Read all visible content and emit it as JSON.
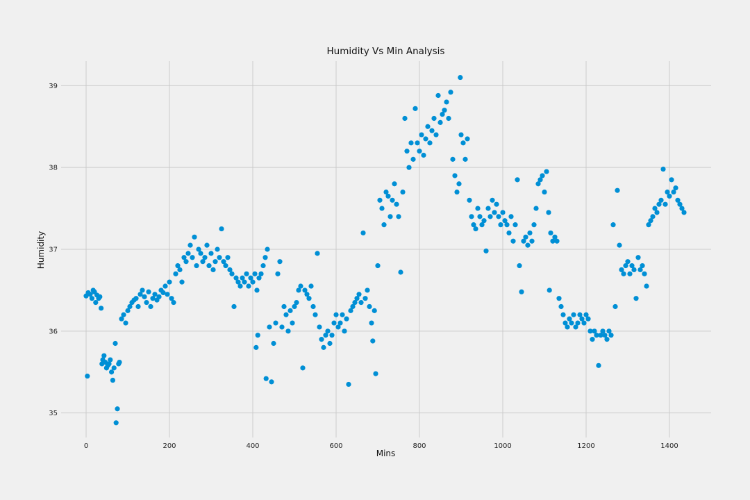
{
  "chart_data": {
    "type": "scatter",
    "title": "Humidity Vs Min Analysis",
    "xlabel": "Mins",
    "ylabel": "Humidity",
    "xlim": [
      -60,
      1500
    ],
    "ylim": [
      34.7,
      39.3
    ],
    "xticks": [
      0,
      200,
      400,
      600,
      800,
      1000,
      1200,
      1400
    ],
    "yticks": [
      35,
      36,
      37,
      38,
      39
    ],
    "grid": true,
    "marker_color": "#008fd5",
    "background_color": "#f0f0f0",
    "grid_color": "#cbcbcb",
    "series": [
      {
        "values": [
          [
            0,
            36.43
          ],
          [
            3,
            35.45
          ],
          [
            5,
            36.47
          ],
          [
            10,
            36.45
          ],
          [
            14,
            36.4
          ],
          [
            17,
            36.5
          ],
          [
            20,
            36.48
          ],
          [
            23,
            36.35
          ],
          [
            26,
            36.44
          ],
          [
            30,
            36.4
          ],
          [
            33,
            36.42
          ],
          [
            36,
            36.28
          ],
          [
            38,
            35.6
          ],
          [
            40,
            35.65
          ],
          [
            43,
            35.7
          ],
          [
            46,
            35.62
          ],
          [
            49,
            35.55
          ],
          [
            52,
            35.58
          ],
          [
            55,
            35.6
          ],
          [
            58,
            35.65
          ],
          [
            61,
            35.5
          ],
          [
            64,
            35.4
          ],
          [
            67,
            35.55
          ],
          [
            70,
            35.85
          ],
          [
            72,
            34.88
          ],
          [
            75,
            35.05
          ],
          [
            78,
            35.6
          ],
          [
            80,
            35.62
          ],
          [
            85,
            36.15
          ],
          [
            90,
            36.2
          ],
          [
            95,
            36.1
          ],
          [
            100,
            36.25
          ],
          [
            105,
            36.3
          ],
          [
            110,
            36.35
          ],
          [
            115,
            36.38
          ],
          [
            120,
            36.4
          ],
          [
            125,
            36.3
          ],
          [
            130,
            36.45
          ],
          [
            135,
            36.5
          ],
          [
            140,
            36.42
          ],
          [
            145,
            36.35
          ],
          [
            150,
            36.48
          ],
          [
            155,
            36.3
          ],
          [
            160,
            36.4
          ],
          [
            165,
            36.45
          ],
          [
            170,
            36.38
          ],
          [
            175,
            36.42
          ],
          [
            180,
            36.5
          ],
          [
            185,
            36.47
          ],
          [
            190,
            36.55
          ],
          [
            195,
            36.45
          ],
          [
            200,
            36.6
          ],
          [
            205,
            36.4
          ],
          [
            210,
            36.35
          ],
          [
            215,
            36.7
          ],
          [
            220,
            36.8
          ],
          [
            225,
            36.75
          ],
          [
            230,
            36.6
          ],
          [
            235,
            36.9
          ],
          [
            240,
            36.85
          ],
          [
            245,
            36.95
          ],
          [
            250,
            37.05
          ],
          [
            255,
            36.9
          ],
          [
            260,
            37.15
          ],
          [
            265,
            36.8
          ],
          [
            270,
            37.0
          ],
          [
            275,
            36.95
          ],
          [
            280,
            36.85
          ],
          [
            285,
            36.9
          ],
          [
            290,
            37.05
          ],
          [
            295,
            36.8
          ],
          [
            300,
            36.95
          ],
          [
            305,
            36.75
          ],
          [
            310,
            36.85
          ],
          [
            315,
            37.0
          ],
          [
            320,
            36.9
          ],
          [
            325,
            37.25
          ],
          [
            330,
            36.85
          ],
          [
            335,
            36.8
          ],
          [
            340,
            36.9
          ],
          [
            345,
            36.75
          ],
          [
            350,
            36.7
          ],
          [
            355,
            36.3
          ],
          [
            360,
            36.65
          ],
          [
            365,
            36.6
          ],
          [
            370,
            36.55
          ],
          [
            375,
            36.65
          ],
          [
            380,
            36.6
          ],
          [
            385,
            36.7
          ],
          [
            390,
            36.55
          ],
          [
            395,
            36.65
          ],
          [
            400,
            36.6
          ],
          [
            405,
            36.7
          ],
          [
            410,
            36.5
          ],
          [
            415,
            36.65
          ],
          [
            420,
            36.7
          ],
          [
            425,
            36.8
          ],
          [
            430,
            36.9
          ],
          [
            435,
            37.0
          ],
          [
            408,
            35.8
          ],
          [
            412,
            35.95
          ],
          [
            432,
            35.42
          ],
          [
            440,
            36.05
          ],
          [
            445,
            35.38
          ],
          [
            450,
            35.85
          ],
          [
            455,
            36.1
          ],
          [
            460,
            36.7
          ],
          [
            465,
            36.85
          ],
          [
            470,
            36.05
          ],
          [
            475,
            36.3
          ],
          [
            480,
            36.2
          ],
          [
            485,
            36.0
          ],
          [
            490,
            36.25
          ],
          [
            495,
            36.1
          ],
          [
            500,
            36.3
          ],
          [
            505,
            36.35
          ],
          [
            510,
            36.5
          ],
          [
            515,
            36.55
          ],
          [
            520,
            35.55
          ],
          [
            525,
            36.5
          ],
          [
            530,
            36.45
          ],
          [
            535,
            36.4
          ],
          [
            540,
            36.55
          ],
          [
            545,
            36.3
          ],
          [
            550,
            36.2
          ],
          [
            555,
            36.95
          ],
          [
            560,
            36.05
          ],
          [
            565,
            35.9
          ],
          [
            570,
            35.8
          ],
          [
            575,
            35.95
          ],
          [
            580,
            36.0
          ],
          [
            585,
            35.85
          ],
          [
            590,
            35.95
          ],
          [
            595,
            36.1
          ],
          [
            600,
            36.2
          ],
          [
            605,
            36.05
          ],
          [
            610,
            36.1
          ],
          [
            615,
            36.2
          ],
          [
            620,
            36.0
          ],
          [
            625,
            36.15
          ],
          [
            630,
            35.35
          ],
          [
            635,
            36.25
          ],
          [
            640,
            36.3
          ],
          [
            645,
            36.35
          ],
          [
            650,
            36.4
          ],
          [
            655,
            36.45
          ],
          [
            660,
            36.35
          ],
          [
            665,
            37.2
          ],
          [
            670,
            36.4
          ],
          [
            675,
            36.5
          ],
          [
            680,
            36.3
          ],
          [
            685,
            36.1
          ],
          [
            688,
            35.88
          ],
          [
            692,
            36.25
          ],
          [
            695,
            35.48
          ],
          [
            700,
            36.8
          ],
          [
            705,
            37.6
          ],
          [
            710,
            37.5
          ],
          [
            715,
            37.3
          ],
          [
            720,
            37.7
          ],
          [
            725,
            37.65
          ],
          [
            730,
            37.4
          ],
          [
            735,
            37.6
          ],
          [
            740,
            37.8
          ],
          [
            745,
            37.55
          ],
          [
            750,
            37.4
          ],
          [
            755,
            36.72
          ],
          [
            760,
            37.7
          ],
          [
            765,
            38.6
          ],
          [
            770,
            38.2
          ],
          [
            775,
            38.0
          ],
          [
            780,
            38.3
          ],
          [
            785,
            38.1
          ],
          [
            790,
            38.72
          ],
          [
            795,
            38.3
          ],
          [
            800,
            38.2
          ],
          [
            805,
            38.4
          ],
          [
            810,
            38.15
          ],
          [
            815,
            38.35
          ],
          [
            820,
            38.5
          ],
          [
            825,
            38.3
          ],
          [
            830,
            38.45
          ],
          [
            835,
            38.6
          ],
          [
            840,
            38.4
          ],
          [
            845,
            38.88
          ],
          [
            850,
            38.55
          ],
          [
            855,
            38.65
          ],
          [
            860,
            38.7
          ],
          [
            865,
            38.8
          ],
          [
            870,
            38.6
          ],
          [
            875,
            38.92
          ],
          [
            880,
            38.1
          ],
          [
            885,
            37.9
          ],
          [
            890,
            37.7
          ],
          [
            895,
            37.8
          ],
          [
            898,
            39.1
          ],
          [
            900,
            38.4
          ],
          [
            905,
            38.3
          ],
          [
            910,
            38.1
          ],
          [
            915,
            38.35
          ],
          [
            920,
            37.6
          ],
          [
            925,
            37.4
          ],
          [
            930,
            37.3
          ],
          [
            935,
            37.25
          ],
          [
            940,
            37.5
          ],
          [
            945,
            37.4
          ],
          [
            950,
            37.3
          ],
          [
            955,
            37.35
          ],
          [
            960,
            36.98
          ],
          [
            965,
            37.5
          ],
          [
            970,
            37.4
          ],
          [
            975,
            37.6
          ],
          [
            980,
            37.45
          ],
          [
            985,
            37.55
          ],
          [
            990,
            37.4
          ],
          [
            995,
            37.3
          ],
          [
            1000,
            37.45
          ],
          [
            1005,
            37.35
          ],
          [
            1010,
            37.3
          ],
          [
            1015,
            37.2
          ],
          [
            1020,
            37.4
          ],
          [
            1025,
            37.1
          ],
          [
            1030,
            37.3
          ],
          [
            1035,
            37.85
          ],
          [
            1040,
            36.8
          ],
          [
            1045,
            36.48
          ],
          [
            1050,
            37.1
          ],
          [
            1055,
            37.15
          ],
          [
            1060,
            37.05
          ],
          [
            1065,
            37.2
          ],
          [
            1070,
            37.1
          ],
          [
            1075,
            37.3
          ],
          [
            1080,
            37.5
          ],
          [
            1085,
            37.8
          ],
          [
            1090,
            37.85
          ],
          [
            1095,
            37.9
          ],
          [
            1100,
            37.7
          ],
          [
            1105,
            37.95
          ],
          [
            1110,
            37.45
          ],
          [
            1112,
            36.5
          ],
          [
            1115,
            37.2
          ],
          [
            1120,
            37.1
          ],
          [
            1125,
            37.15
          ],
          [
            1130,
            37.1
          ],
          [
            1135,
            36.4
          ],
          [
            1140,
            36.3
          ],
          [
            1145,
            36.2
          ],
          [
            1150,
            36.1
          ],
          [
            1155,
            36.05
          ],
          [
            1160,
            36.15
          ],
          [
            1165,
            36.1
          ],
          [
            1170,
            36.2
          ],
          [
            1175,
            36.05
          ],
          [
            1180,
            36.1
          ],
          [
            1185,
            36.2
          ],
          [
            1190,
            36.15
          ],
          [
            1195,
            36.1
          ],
          [
            1200,
            36.2
          ],
          [
            1205,
            36.15
          ],
          [
            1210,
            36.0
          ],
          [
            1215,
            35.9
          ],
          [
            1220,
            36.0
          ],
          [
            1225,
            35.95
          ],
          [
            1230,
            35.58
          ],
          [
            1235,
            35.95
          ],
          [
            1240,
            36.0
          ],
          [
            1245,
            35.95
          ],
          [
            1250,
            35.9
          ],
          [
            1255,
            36.0
          ],
          [
            1260,
            35.95
          ],
          [
            1265,
            37.3
          ],
          [
            1270,
            36.3
          ],
          [
            1275,
            37.72
          ],
          [
            1280,
            37.05
          ],
          [
            1285,
            36.75
          ],
          [
            1290,
            36.7
          ],
          [
            1295,
            36.8
          ],
          [
            1300,
            36.85
          ],
          [
            1305,
            36.7
          ],
          [
            1310,
            36.8
          ],
          [
            1315,
            36.75
          ],
          [
            1320,
            36.4
          ],
          [
            1325,
            36.9
          ],
          [
            1330,
            36.75
          ],
          [
            1335,
            36.8
          ],
          [
            1340,
            36.7
          ],
          [
            1345,
            36.55
          ],
          [
            1350,
            37.3
          ],
          [
            1355,
            37.35
          ],
          [
            1360,
            37.4
          ],
          [
            1365,
            37.5
          ],
          [
            1370,
            37.45
          ],
          [
            1375,
            37.55
          ],
          [
            1380,
            37.6
          ],
          [
            1385,
            37.98
          ],
          [
            1390,
            37.55
          ],
          [
            1395,
            37.7
          ],
          [
            1400,
            37.65
          ],
          [
            1405,
            37.85
          ],
          [
            1410,
            37.7
          ],
          [
            1415,
            37.75
          ],
          [
            1420,
            37.6
          ],
          [
            1425,
            37.55
          ],
          [
            1430,
            37.5
          ],
          [
            1435,
            37.45
          ]
        ]
      }
    ]
  }
}
